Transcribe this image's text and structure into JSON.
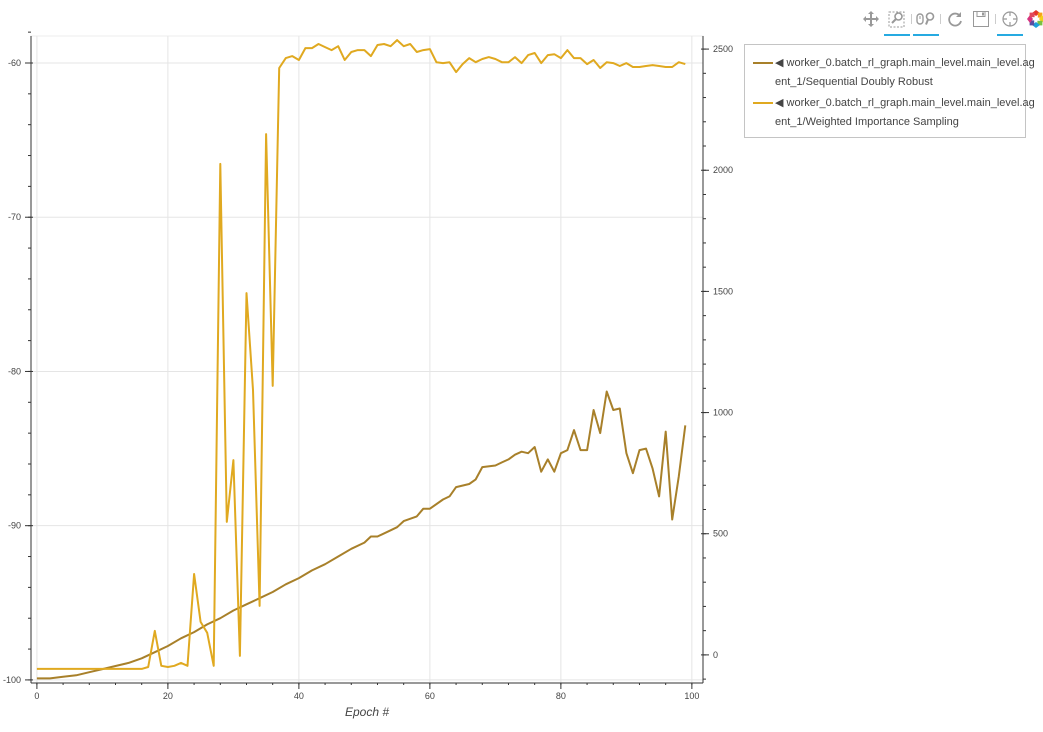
{
  "toolbar": {
    "tools": [
      {
        "name": "pan",
        "icon": "pan-icon",
        "active": false
      },
      {
        "name": "box-zoom",
        "icon": "box-zoom-icon",
        "active": true
      },
      {
        "name": "wheel-zoom",
        "icon": "wheel-zoom-icon",
        "active": true
      },
      {
        "name": "reset",
        "icon": "reset-icon",
        "active": false
      },
      {
        "name": "save",
        "icon": "save-icon",
        "active": false
      },
      {
        "name": "crosshair",
        "icon": "crosshair-icon",
        "active": true
      },
      {
        "name": "bokeh-logo",
        "icon": "bokeh-logo-icon",
        "active": false
      }
    ]
  },
  "legend": {
    "items": [
      {
        "line1": "◀ worker_0.batch_rl_graph.main_level.main_level.ag",
        "line2": "ent_1/Sequential Doubly Robust",
        "color": "#a8802a"
      },
      {
        "line1": "◀ worker_0.batch_rl_graph.main_level.main_level.ag",
        "line2": "ent_1/Weighted Importance Sampling",
        "color": "#e0a920"
      }
    ]
  },
  "chart_data": {
    "type": "line",
    "xlabel": "Epoch #",
    "xlim": [
      -0.9,
      101.7
    ],
    "x_ticks": [
      0,
      20,
      40,
      60,
      80,
      100
    ],
    "y_left": {
      "lim": [
        -100.2,
        -58.25
      ],
      "ticks": [
        -100,
        -90,
        -80,
        -70,
        -60
      ]
    },
    "y_right": {
      "lim": [
        -116,
        2554
      ],
      "ticks": [
        0,
        500,
        1000,
        1500,
        2000,
        2500
      ]
    },
    "grid": true,
    "legend_placement": "outside-right-top",
    "series": [
      {
        "name": "worker_0.batch_rl_graph.main_level.main_level.agent_1/Sequential Doubly Robust",
        "axis": "left",
        "color": "#a8802a",
        "x": [
          0,
          2,
          4,
          6,
          8,
          10,
          12,
          14,
          16,
          18,
          20,
          22,
          24,
          26,
          28,
          30,
          32,
          34,
          36,
          38,
          40,
          42,
          44,
          46,
          48,
          50,
          51,
          52,
          54,
          55,
          56,
          58,
          59,
          60,
          62,
          63,
          64,
          66,
          67,
          68,
          70,
          71,
          72,
          73,
          74,
          75,
          76,
          77,
          78,
          79,
          80,
          81,
          82,
          83,
          84,
          85,
          86,
          87,
          88,
          89,
          90,
          91,
          92,
          93,
          94,
          95,
          96,
          97,
          98,
          99
        ],
        "y": [
          -99.9,
          -99.9,
          -99.8,
          -99.7,
          -99.5,
          -99.3,
          -99.1,
          -98.9,
          -98.6,
          -98.2,
          -97.8,
          -97.3,
          -96.9,
          -96.4,
          -96.0,
          -95.5,
          -95.1,
          -94.7,
          -94.3,
          -93.8,
          -93.4,
          -92.9,
          -92.5,
          -92.0,
          -91.5,
          -91.1,
          -90.7,
          -90.7,
          -90.3,
          -90.1,
          -89.7,
          -89.4,
          -88.9,
          -88.9,
          -88.3,
          -88.1,
          -87.5,
          -87.3,
          -87.0,
          -86.2,
          -86.1,
          -85.9,
          -85.7,
          -85.4,
          -85.2,
          -85.3,
          -84.9,
          -86.5,
          -85.7,
          -86.5,
          -85.3,
          -85.1,
          -83.8,
          -85.1,
          -85.1,
          -82.5,
          -84.0,
          -81.3,
          -82.5,
          -82.4,
          -85.3,
          -86.6,
          -85.1,
          -85.0,
          -86.3,
          -88.1,
          -83.9,
          -89.6,
          -86.8,
          -83.5
        ]
      },
      {
        "name": "worker_0.batch_rl_graph.main_level.main_level.agent_1/Weighted Importance Sampling",
        "axis": "right",
        "color": "#e0a920",
        "x": [
          0,
          16,
          17,
          18,
          19,
          20,
          21,
          22,
          23,
          24,
          25,
          26,
          27,
          28,
          29,
          30,
          31,
          32,
          33,
          34,
          35,
          36,
          37,
          38,
          39,
          40,
          41,
          42,
          43,
          44,
          45,
          46,
          47,
          48,
          49,
          50,
          51,
          52,
          53,
          54,
          55,
          56,
          57,
          58,
          59,
          60,
          61,
          62,
          63,
          64,
          65,
          66,
          67,
          68,
          69,
          70,
          71,
          72,
          73,
          74,
          75,
          76,
          77,
          78,
          79,
          80,
          81,
          82,
          83,
          84,
          85,
          86,
          87,
          88,
          89,
          90,
          91,
          92,
          93,
          94,
          95,
          96,
          97,
          98,
          99
        ],
        "y": [
          -58,
          -58,
          -50,
          99,
          -45,
          -50,
          -45,
          -33,
          -45,
          334,
          136,
          91,
          -45,
          2026,
          549,
          804,
          -4,
          1493,
          1093,
          202,
          2149,
          1110,
          2422,
          2463,
          2471,
          2455,
          2504,
          2504,
          2521,
          2508,
          2496,
          2512,
          2455,
          2488,
          2496,
          2496,
          2471,
          2517,
          2521,
          2512,
          2537,
          2512,
          2521,
          2488,
          2496,
          2500,
          2446,
          2442,
          2446,
          2405,
          2438,
          2463,
          2446,
          2459,
          2467,
          2459,
          2446,
          2446,
          2467,
          2442,
          2475,
          2484,
          2442,
          2475,
          2479,
          2463,
          2496,
          2463,
          2463,
          2438,
          2455,
          2422,
          2446,
          2442,
          2430,
          2442,
          2426,
          2426,
          2430,
          2434,
          2430,
          2426,
          2426,
          2446,
          2438
        ]
      }
    ]
  }
}
